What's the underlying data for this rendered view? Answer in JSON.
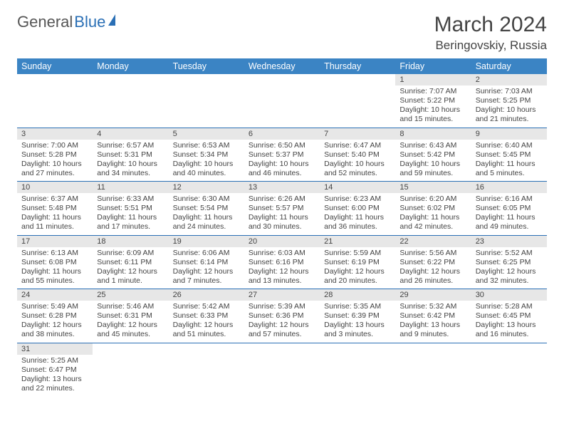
{
  "logo": {
    "part1": "General",
    "part2": "Blue"
  },
  "title": "March 2024",
  "location": "Beringovskiy, Russia",
  "colors": {
    "header_bg": "#3b84c4",
    "border": "#2a6fb5",
    "daynum_bg": "#e7e7e7",
    "text": "#444444"
  },
  "weekdays": [
    "Sunday",
    "Monday",
    "Tuesday",
    "Wednesday",
    "Thursday",
    "Friday",
    "Saturday"
  ],
  "weeks": [
    [
      null,
      null,
      null,
      null,
      null,
      {
        "n": "1",
        "sr": "Sunrise: 7:07 AM",
        "ss": "Sunset: 5:22 PM",
        "dl": "Daylight: 10 hours and 15 minutes."
      },
      {
        "n": "2",
        "sr": "Sunrise: 7:03 AM",
        "ss": "Sunset: 5:25 PM",
        "dl": "Daylight: 10 hours and 21 minutes."
      }
    ],
    [
      {
        "n": "3",
        "sr": "Sunrise: 7:00 AM",
        "ss": "Sunset: 5:28 PM",
        "dl": "Daylight: 10 hours and 27 minutes."
      },
      {
        "n": "4",
        "sr": "Sunrise: 6:57 AM",
        "ss": "Sunset: 5:31 PM",
        "dl": "Daylight: 10 hours and 34 minutes."
      },
      {
        "n": "5",
        "sr": "Sunrise: 6:53 AM",
        "ss": "Sunset: 5:34 PM",
        "dl": "Daylight: 10 hours and 40 minutes."
      },
      {
        "n": "6",
        "sr": "Sunrise: 6:50 AM",
        "ss": "Sunset: 5:37 PM",
        "dl": "Daylight: 10 hours and 46 minutes."
      },
      {
        "n": "7",
        "sr": "Sunrise: 6:47 AM",
        "ss": "Sunset: 5:40 PM",
        "dl": "Daylight: 10 hours and 52 minutes."
      },
      {
        "n": "8",
        "sr": "Sunrise: 6:43 AM",
        "ss": "Sunset: 5:42 PM",
        "dl": "Daylight: 10 hours and 59 minutes."
      },
      {
        "n": "9",
        "sr": "Sunrise: 6:40 AM",
        "ss": "Sunset: 5:45 PM",
        "dl": "Daylight: 11 hours and 5 minutes."
      }
    ],
    [
      {
        "n": "10",
        "sr": "Sunrise: 6:37 AM",
        "ss": "Sunset: 5:48 PM",
        "dl": "Daylight: 11 hours and 11 minutes."
      },
      {
        "n": "11",
        "sr": "Sunrise: 6:33 AM",
        "ss": "Sunset: 5:51 PM",
        "dl": "Daylight: 11 hours and 17 minutes."
      },
      {
        "n": "12",
        "sr": "Sunrise: 6:30 AM",
        "ss": "Sunset: 5:54 PM",
        "dl": "Daylight: 11 hours and 24 minutes."
      },
      {
        "n": "13",
        "sr": "Sunrise: 6:26 AM",
        "ss": "Sunset: 5:57 PM",
        "dl": "Daylight: 11 hours and 30 minutes."
      },
      {
        "n": "14",
        "sr": "Sunrise: 6:23 AM",
        "ss": "Sunset: 6:00 PM",
        "dl": "Daylight: 11 hours and 36 minutes."
      },
      {
        "n": "15",
        "sr": "Sunrise: 6:20 AM",
        "ss": "Sunset: 6:02 PM",
        "dl": "Daylight: 11 hours and 42 minutes."
      },
      {
        "n": "16",
        "sr": "Sunrise: 6:16 AM",
        "ss": "Sunset: 6:05 PM",
        "dl": "Daylight: 11 hours and 49 minutes."
      }
    ],
    [
      {
        "n": "17",
        "sr": "Sunrise: 6:13 AM",
        "ss": "Sunset: 6:08 PM",
        "dl": "Daylight: 11 hours and 55 minutes."
      },
      {
        "n": "18",
        "sr": "Sunrise: 6:09 AM",
        "ss": "Sunset: 6:11 PM",
        "dl": "Daylight: 12 hours and 1 minute."
      },
      {
        "n": "19",
        "sr": "Sunrise: 6:06 AM",
        "ss": "Sunset: 6:14 PM",
        "dl": "Daylight: 12 hours and 7 minutes."
      },
      {
        "n": "20",
        "sr": "Sunrise: 6:03 AM",
        "ss": "Sunset: 6:16 PM",
        "dl": "Daylight: 12 hours and 13 minutes."
      },
      {
        "n": "21",
        "sr": "Sunrise: 5:59 AM",
        "ss": "Sunset: 6:19 PM",
        "dl": "Daylight: 12 hours and 20 minutes."
      },
      {
        "n": "22",
        "sr": "Sunrise: 5:56 AM",
        "ss": "Sunset: 6:22 PM",
        "dl": "Daylight: 12 hours and 26 minutes."
      },
      {
        "n": "23",
        "sr": "Sunrise: 5:52 AM",
        "ss": "Sunset: 6:25 PM",
        "dl": "Daylight: 12 hours and 32 minutes."
      }
    ],
    [
      {
        "n": "24",
        "sr": "Sunrise: 5:49 AM",
        "ss": "Sunset: 6:28 PM",
        "dl": "Daylight: 12 hours and 38 minutes."
      },
      {
        "n": "25",
        "sr": "Sunrise: 5:46 AM",
        "ss": "Sunset: 6:31 PM",
        "dl": "Daylight: 12 hours and 45 minutes."
      },
      {
        "n": "26",
        "sr": "Sunrise: 5:42 AM",
        "ss": "Sunset: 6:33 PM",
        "dl": "Daylight: 12 hours and 51 minutes."
      },
      {
        "n": "27",
        "sr": "Sunrise: 5:39 AM",
        "ss": "Sunset: 6:36 PM",
        "dl": "Daylight: 12 hours and 57 minutes."
      },
      {
        "n": "28",
        "sr": "Sunrise: 5:35 AM",
        "ss": "Sunset: 6:39 PM",
        "dl": "Daylight: 13 hours and 3 minutes."
      },
      {
        "n": "29",
        "sr": "Sunrise: 5:32 AM",
        "ss": "Sunset: 6:42 PM",
        "dl": "Daylight: 13 hours and 9 minutes."
      },
      {
        "n": "30",
        "sr": "Sunrise: 5:28 AM",
        "ss": "Sunset: 6:45 PM",
        "dl": "Daylight: 13 hours and 16 minutes."
      }
    ],
    [
      {
        "n": "31",
        "sr": "Sunrise: 5:25 AM",
        "ss": "Sunset: 6:47 PM",
        "dl": "Daylight: 13 hours and 22 minutes."
      },
      null,
      null,
      null,
      null,
      null,
      null
    ]
  ]
}
